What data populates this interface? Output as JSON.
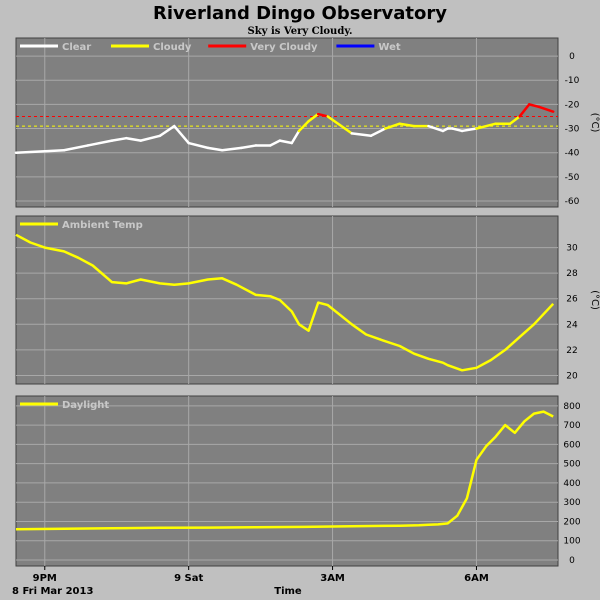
{
  "title": "Riverland Dingo Observatory",
  "subtitle": "Sky is Very Cloudy.",
  "xlabel": "Time",
  "date_label": "8 Fri Mar 2013",
  "colors": {
    "background": "#c0c0c0",
    "plot_bg": "#808080",
    "grid": "#a8a8a8",
    "clear": "#ffffff",
    "cloudy": "#ffff00",
    "very_cloudy": "#ff0000",
    "wet": "#0000ff",
    "text": "#000000",
    "legend_text": "#c8c8c8"
  },
  "chart_data": [
    {
      "type": "line",
      "panel": "sky",
      "ylabel": "(°C)",
      "ylim": [
        -60,
        5
      ],
      "yticks": [
        "0",
        "-10",
        "-20",
        "-30",
        "-40",
        "-50",
        "-60"
      ],
      "ytick_values": [
        0,
        -10,
        -20,
        -30,
        -40,
        -50,
        -60
      ],
      "legend": [
        "Clear",
        "Cloudy",
        "Very Cloudy",
        "Wet"
      ],
      "thresholds": [
        {
          "name": "Very Cloudy",
          "value": -25
        },
        {
          "name": "Cloudy",
          "value": -29
        }
      ],
      "series": [
        {
          "name": "Sky",
          "x": [
            0,
            1,
            1.5,
            2,
            2.3,
            2.6,
            3,
            3.3,
            3.6,
            4,
            4.3,
            4.7,
            5,
            5.3,
            5.5,
            5.75,
            5.9,
            6.1,
            6.3,
            6.5,
            7,
            7.4,
            7.7,
            8,
            8.3,
            8.6,
            8.9,
            9,
            9.1,
            9.3,
            9.6,
            10,
            10.3,
            10.5,
            10.7,
            10.9,
            11.2
          ],
          "y": [
            -40,
            -39,
            -37,
            -35,
            -34,
            -35,
            -33,
            -29,
            -36,
            -38,
            -39,
            -38,
            -37,
            -37,
            -35,
            -36,
            -31,
            -27,
            -24,
            -25,
            -32,
            -33,
            -30,
            -28,
            -29,
            -29,
            -31,
            -30,
            -30,
            -31,
            -30,
            -28,
            -28,
            -25,
            -20,
            -21,
            -23
          ]
        }
      ]
    },
    {
      "type": "line",
      "panel": "ambient",
      "ylabel": "(°C)",
      "ylim": [
        19.8,
        32
      ],
      "yticks": [
        "30",
        "28",
        "26",
        "24",
        "22",
        "20"
      ],
      "ytick_values": [
        30,
        28,
        26,
        24,
        22,
        20
      ],
      "legend": [
        "Ambient Temp"
      ],
      "series": [
        {
          "name": "Ambient Temp",
          "x": [
            0,
            0.3,
            0.6,
            1,
            1.3,
            1.6,
            2,
            2.3,
            2.6,
            3,
            3.3,
            3.6,
            4,
            4.3,
            4.6,
            5,
            5.3,
            5.5,
            5.75,
            5.9,
            6.1,
            6.3,
            6.5,
            7,
            7.3,
            7.6,
            8,
            8.3,
            8.6,
            8.9,
            9,
            9.3,
            9.6,
            9.9,
            10.2,
            10.5,
            10.8,
            11.2
          ],
          "y": [
            31,
            30.4,
            30,
            29.7,
            29.2,
            28.6,
            27.3,
            27.2,
            27.5,
            27.2,
            27.1,
            27.2,
            27.5,
            27.6,
            27.1,
            26.3,
            26.2,
            25.9,
            25,
            24,
            23.5,
            25.7,
            25.5,
            24,
            23.2,
            22.8,
            22.3,
            21.7,
            21.3,
            21.0,
            20.8,
            20.4,
            20.6,
            21.2,
            22,
            23,
            24,
            25.6
          ]
        }
      ]
    },
    {
      "type": "line",
      "panel": "daylight",
      "ylabel": "",
      "ylim": [
        0,
        820
      ],
      "yticks": [
        "800",
        "700",
        "600",
        "500",
        "400",
        "300",
        "200",
        "100",
        "0"
      ],
      "ytick_values": [
        800,
        700,
        600,
        500,
        400,
        300,
        200,
        100,
        0
      ],
      "legend": [
        "Daylight"
      ],
      "series": [
        {
          "name": "Daylight",
          "x": [
            0,
            1,
            2,
            3,
            4,
            5,
            6,
            7,
            8,
            8.4,
            8.6,
            8.8,
            9.0,
            9.2,
            9.4,
            9.6,
            9.8,
            10.0,
            10.2,
            10.4,
            10.6,
            10.8,
            11.0,
            11.2
          ],
          "y": [
            160,
            162,
            165,
            167,
            168,
            170,
            172,
            175,
            178,
            180,
            183,
            185,
            190,
            230,
            320,
            520,
            590,
            640,
            700,
            660,
            720,
            760,
            770,
            745
          ]
        }
      ]
    }
  ],
  "x_axis": {
    "xlim": [
      0,
      11.3
    ],
    "ticks": [
      {
        "x": 0.6,
        "label": "9PM"
      },
      {
        "x": 3.6,
        "label": "9 Sat"
      },
      {
        "x": 6.6,
        "label": "3AM"
      },
      {
        "x": 9.6,
        "label": "6AM"
      }
    ]
  }
}
